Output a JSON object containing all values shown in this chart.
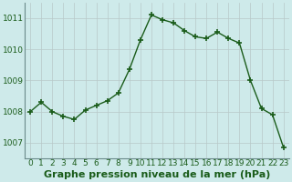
{
  "x": [
    0,
    1,
    2,
    3,
    4,
    5,
    6,
    7,
    8,
    9,
    10,
    11,
    12,
    13,
    14,
    15,
    16,
    17,
    18,
    19,
    20,
    21,
    22,
    23
  ],
  "y": [
    1008.0,
    1008.3,
    1008.0,
    1007.85,
    1007.75,
    1008.05,
    1008.2,
    1008.35,
    1008.6,
    1009.35,
    1010.3,
    1011.1,
    1010.95,
    1010.85,
    1010.6,
    1010.4,
    1010.35,
    1010.55,
    1010.35,
    1010.2,
    1009.0,
    1008.1,
    1007.9,
    1006.85
  ],
  "line_color": "#1a5c1a",
  "marker": "+",
  "marker_size": 4,
  "marker_color": "#1a5c1a",
  "bg_color": "#ceeaea",
  "grid_color": "#b8c8c8",
  "xlabel": "Graphe pression niveau de la mer (hPa)",
  "xlabel_fontsize": 8,
  "ylabel_ticks": [
    1007,
    1008,
    1009,
    1010,
    1011
  ],
  "xticks": [
    0,
    1,
    2,
    3,
    4,
    5,
    6,
    7,
    8,
    9,
    10,
    11,
    12,
    13,
    14,
    15,
    16,
    17,
    18,
    19,
    20,
    21,
    22,
    23
  ],
  "ylim": [
    1006.5,
    1011.5
  ],
  "xlim": [
    -0.5,
    23.5
  ],
  "tick_fontsize": 6.5,
  "line_width": 1.0,
  "spine_color": "#6a8a8a"
}
